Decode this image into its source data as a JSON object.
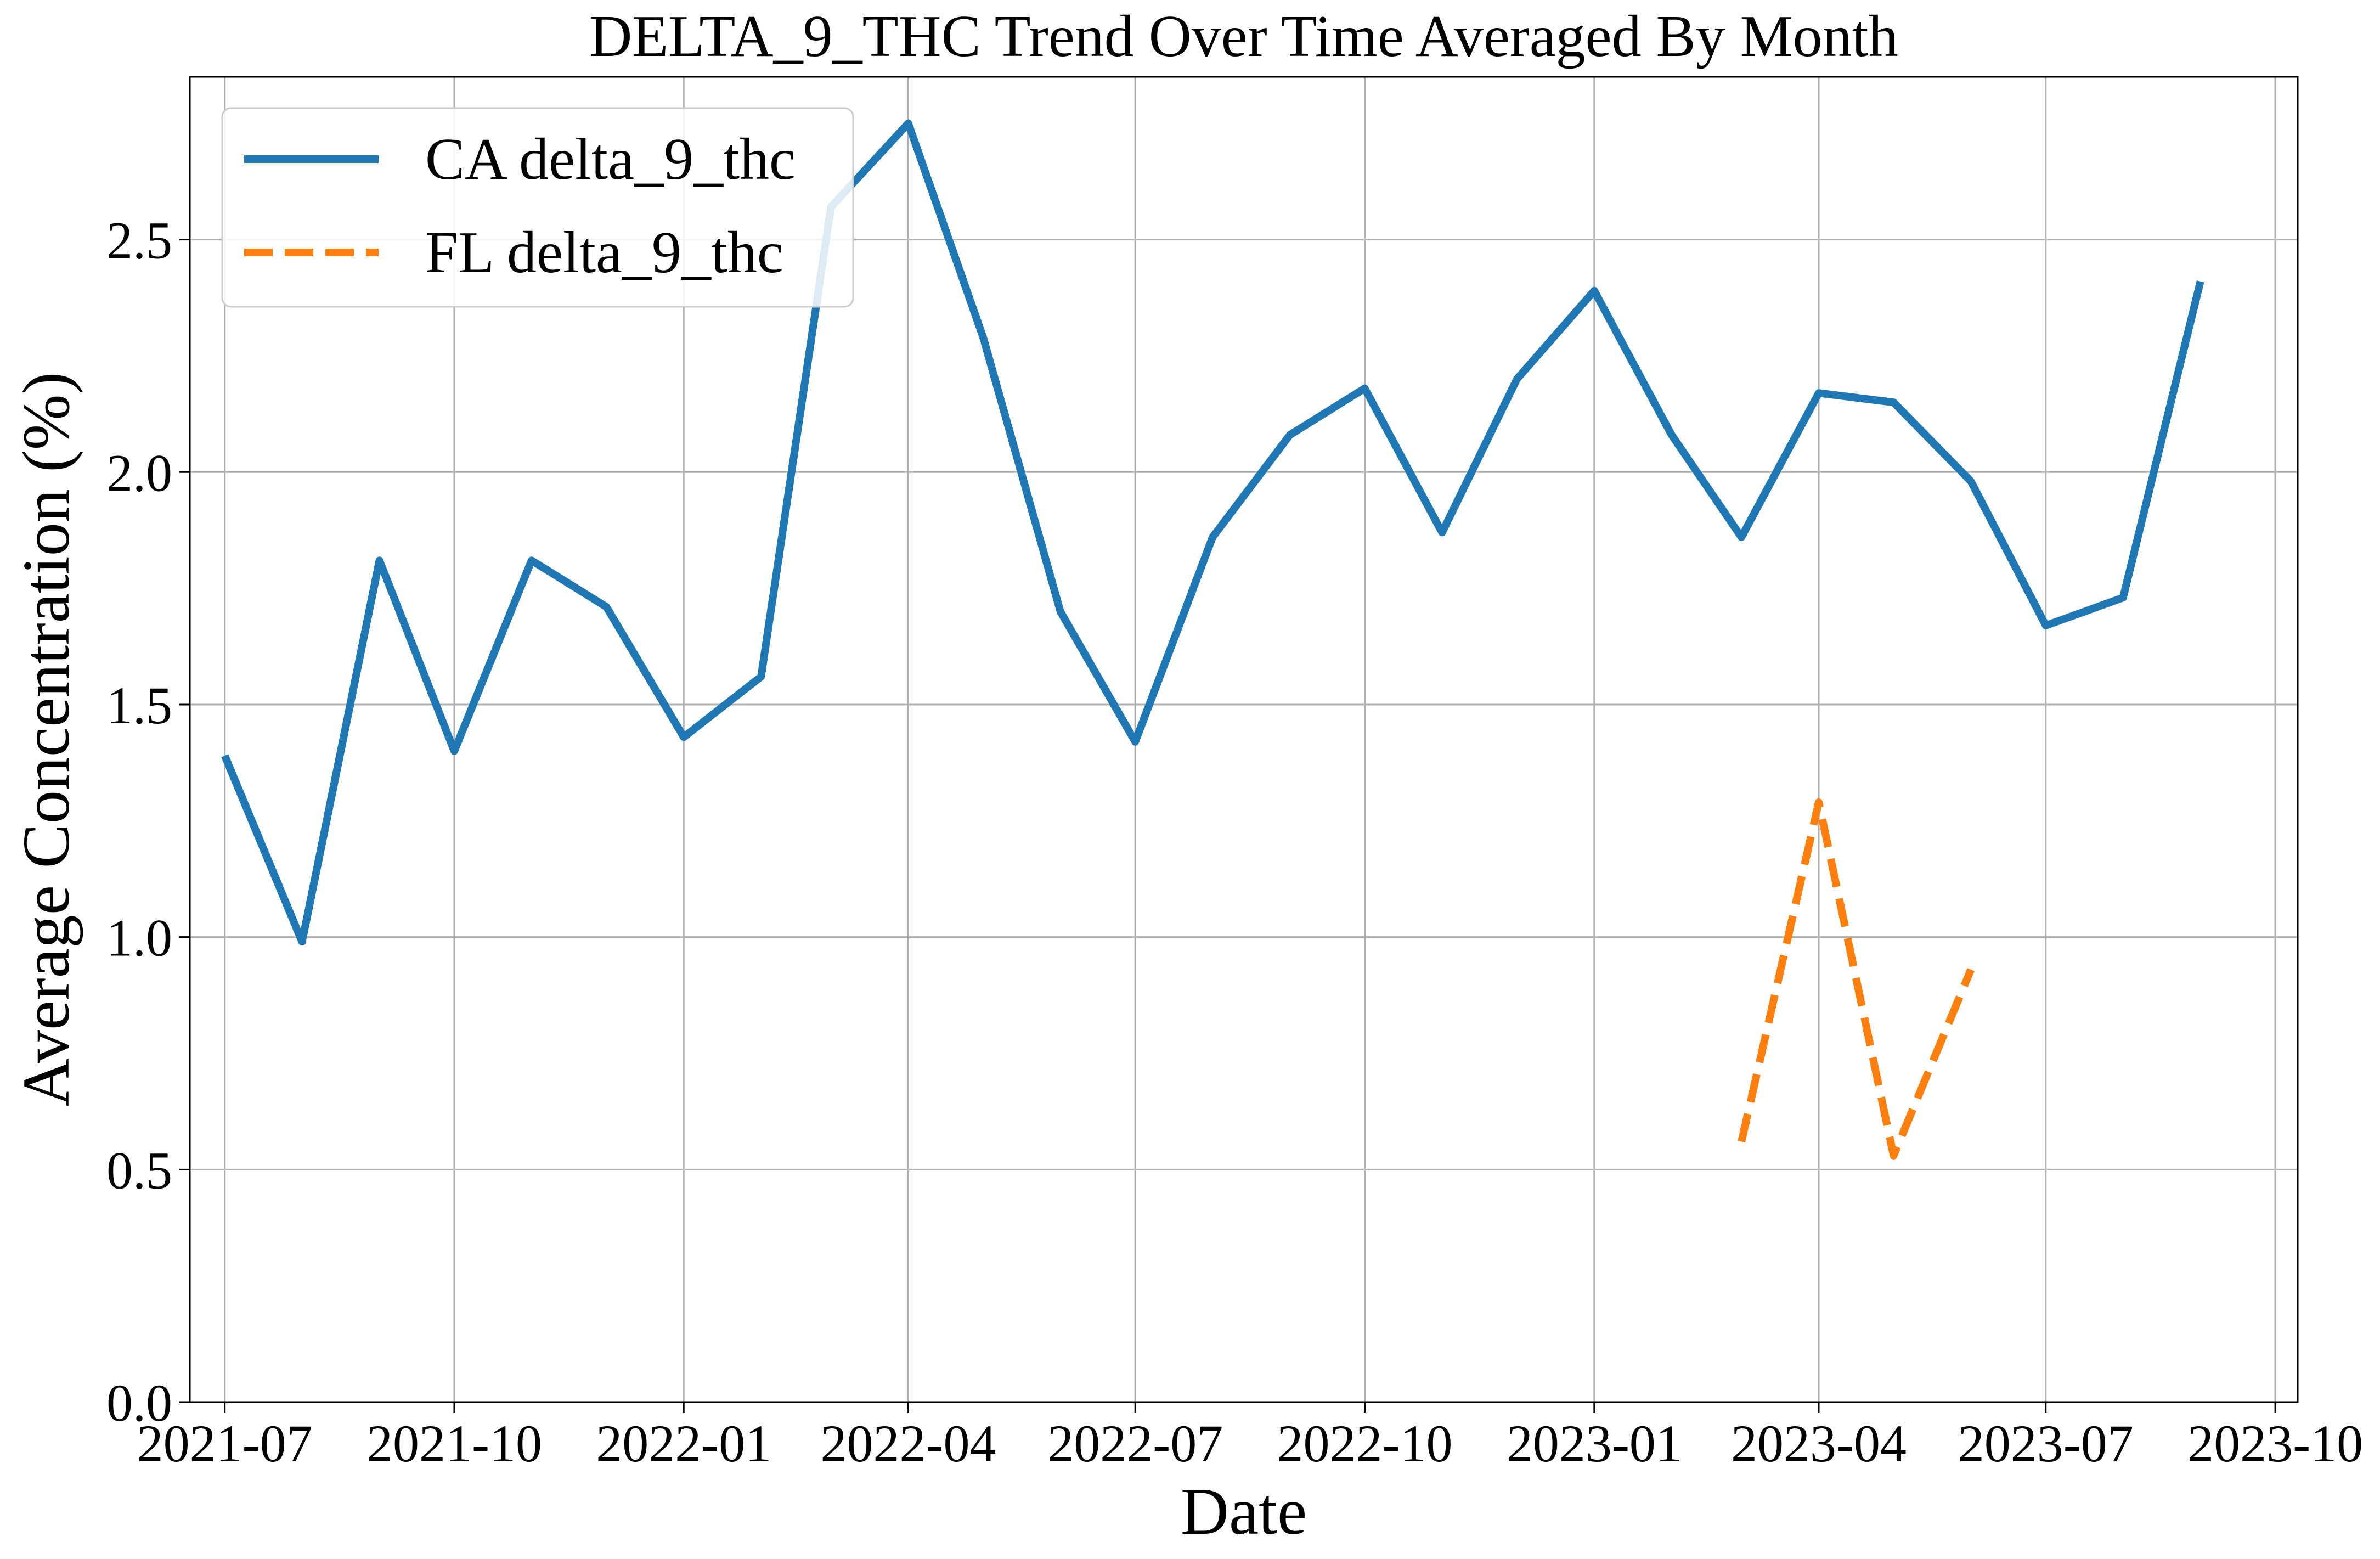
{
  "chart_data": {
    "type": "line",
    "title": "DELTA_9_THC Trend Over Time Averaged By Month",
    "xlabel": "Date",
    "ylabel": "Average Concentration (%)",
    "x_axis_type": "date",
    "xlim": [
      "2021-06-17",
      "2023-10-10"
    ],
    "ylim": [
      0,
      2.85
    ],
    "x_ticks": [
      "2021-07",
      "2021-10",
      "2022-01",
      "2022-04",
      "2022-07",
      "2022-10",
      "2023-01",
      "2023-04",
      "2023-07",
      "2023-10"
    ],
    "y_ticks": [
      "0.0",
      "0.5",
      "1.0",
      "1.5",
      "2.0",
      "2.5"
    ],
    "grid": true,
    "legend_position": "top-left",
    "series": [
      {
        "name": "CA delta_9_thc",
        "color": "#1f77b4",
        "line_style": "solid",
        "points": [
          {
            "x": "2021-07-01",
            "y": 1.39
          },
          {
            "x": "2021-08-01",
            "y": 0.99
          },
          {
            "x": "2021-09-01",
            "y": 1.81
          },
          {
            "x": "2021-10-01",
            "y": 1.4
          },
          {
            "x": "2021-11-01",
            "y": 1.81
          },
          {
            "x": "2021-12-01",
            "y": 1.71
          },
          {
            "x": "2022-01-01",
            "y": 1.43
          },
          {
            "x": "2022-02-01",
            "y": 1.56
          },
          {
            "x": "2022-03-01",
            "y": 2.57
          },
          {
            "x": "2022-04-01",
            "y": 2.75
          },
          {
            "x": "2022-05-01",
            "y": 2.29
          },
          {
            "x": "2022-06-01",
            "y": 1.7
          },
          {
            "x": "2022-07-01",
            "y": 1.42
          },
          {
            "x": "2022-08-01",
            "y": 1.86
          },
          {
            "x": "2022-09-01",
            "y": 2.08
          },
          {
            "x": "2022-10-01",
            "y": 2.18
          },
          {
            "x": "2022-11-01",
            "y": 1.87
          },
          {
            "x": "2022-12-01",
            "y": 2.2
          },
          {
            "x": "2023-01-01",
            "y": 2.39
          },
          {
            "x": "2023-02-01",
            "y": 2.08
          },
          {
            "x": "2023-03-01",
            "y": 1.86
          },
          {
            "x": "2023-04-01",
            "y": 2.17
          },
          {
            "x": "2023-05-01",
            "y": 2.15
          },
          {
            "x": "2023-06-01",
            "y": 1.98
          },
          {
            "x": "2023-07-01",
            "y": 1.67
          },
          {
            "x": "2023-08-01",
            "y": 1.73
          },
          {
            "x": "2023-09-01",
            "y": 2.41
          }
        ]
      },
      {
        "name": "FL delta_9_thc",
        "color": "#ff7f0e",
        "line_style": "dashed",
        "points": [
          {
            "x": "2023-03-01",
            "y": 0.56
          },
          {
            "x": "2023-04-01",
            "y": 1.29
          },
          {
            "x": "2023-05-01",
            "y": 0.53
          },
          {
            "x": "2023-06-01",
            "y": 0.93
          }
        ]
      }
    ]
  }
}
